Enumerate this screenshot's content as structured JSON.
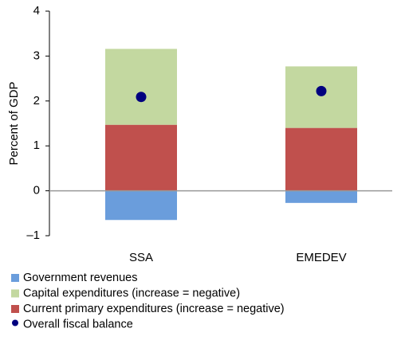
{
  "chart_data": {
    "type": "stacked-bar",
    "y_label": "Percent of GDP",
    "categories": [
      "SSA",
      "EMEDEV"
    ],
    "series": [
      {
        "name": "Government revenues",
        "color": "#6a9ddc",
        "values": [
          -0.65,
          -0.27
        ]
      },
      {
        "name": "Capital expenditures (increase = negative)",
        "color": "#c3d8a0",
        "values": [
          1.69,
          1.37
        ]
      },
      {
        "name": "Current primary expenditures (increase = negative)",
        "color": "#c0504d",
        "values": [
          1.47,
          1.4
        ]
      }
    ],
    "markers": {
      "name": "Overall fiscal balance",
      "color": "#00007f",
      "values": [
        2.09,
        2.22
      ]
    },
    "ylim": [
      -1,
      4
    ],
    "yticks": [
      {
        "value": -1,
        "label": "–1"
      },
      0,
      1,
      2,
      3,
      4
    ]
  }
}
